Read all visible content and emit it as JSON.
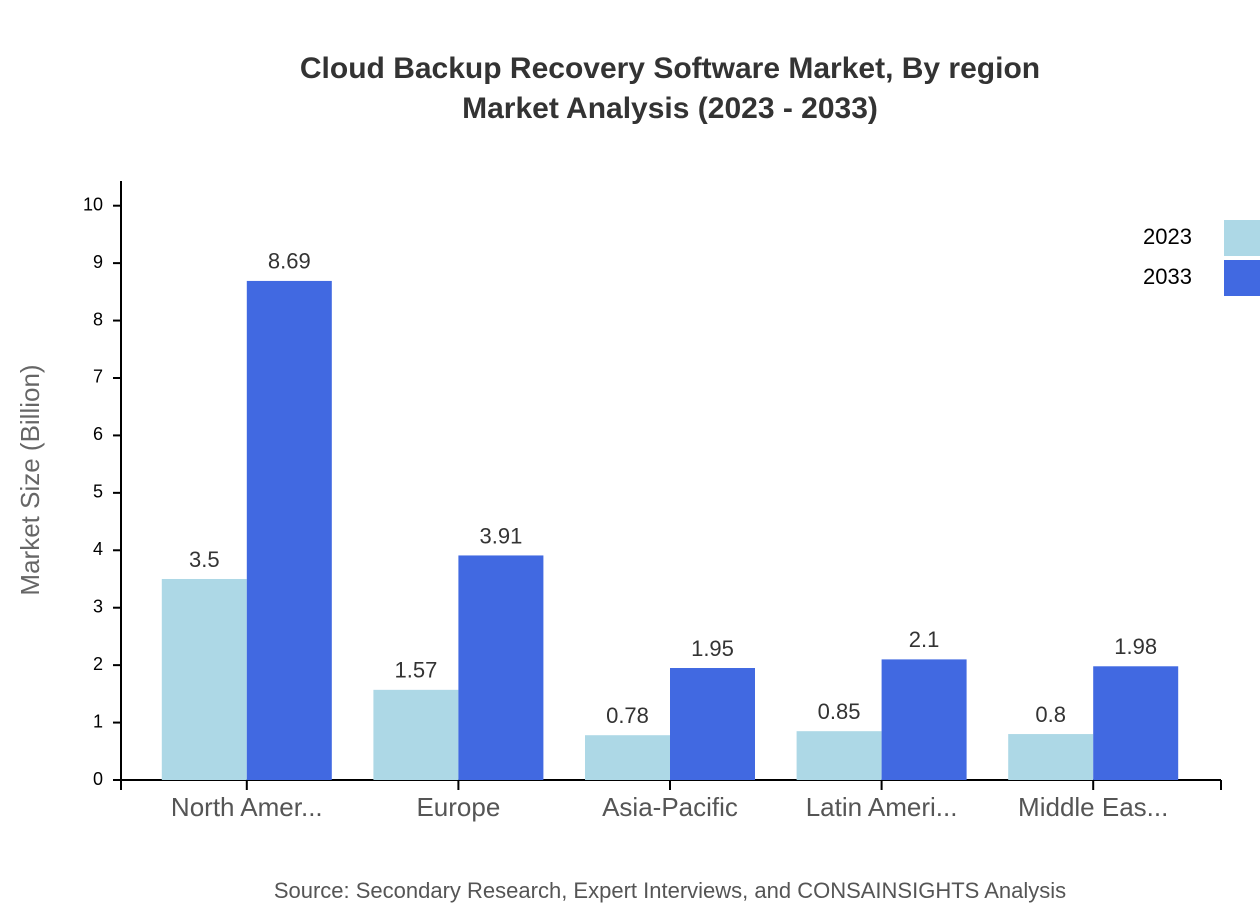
{
  "chart_data": {
    "type": "bar",
    "title": "Cloud Backup Recovery Software Market, By region",
    "subtitle": "Market Analysis (2023 - 2033)",
    "y_label": "Market Size (Billion)",
    "source": "Source: Secondary Research, Expert Interviews, and CONSAINSIGHTS Analysis",
    "categories": [
      "North Amer...",
      "Europe",
      "Asia-Pacific",
      "Latin Ameri...",
      "Middle Eas..."
    ],
    "series": [
      {
        "name": "2023",
        "color": "#add8e6",
        "values": [
          3.5,
          1.57,
          0.78,
          0.85,
          0.8
        ]
      },
      {
        "name": "2033",
        "color": "#4169e1",
        "values": [
          8.69,
          3.91,
          1.95,
          2.1,
          1.98
        ]
      }
    ],
    "ylim": [
      0,
      10.43
    ],
    "yticks": [
      0,
      1,
      2,
      3,
      4,
      5,
      6,
      7,
      8,
      9,
      10
    ],
    "legend": "top-right"
  }
}
